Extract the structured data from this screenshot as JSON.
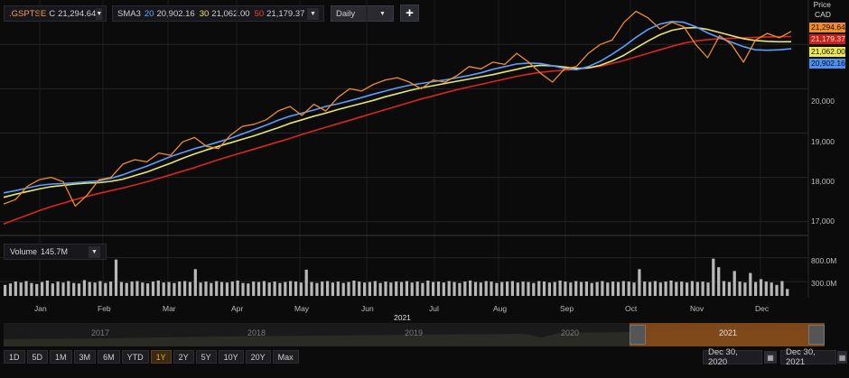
{
  "header": {
    "symbol": ".GSPTSE",
    "close_prefix": "C",
    "close_value": "21,294.64",
    "sma_label": "SMA3",
    "sma20_len": "20",
    "sma20_val": "20,902.16",
    "sma30_len": "30",
    "sma30_val": "21,062.00",
    "sma50_len": "50",
    "sma50_val": "21,179.37",
    "interval": "Daily",
    "dropdown_glyph": "▼",
    "add_glyph": "+"
  },
  "price_axis": {
    "title_line1": "Price",
    "title_line2": "CAD",
    "ticks": [
      "20,000",
      "19,000",
      "18,000",
      "17,000"
    ],
    "last_close": "21,294.64",
    "last_sma50": "21,179.37",
    "last_sma30": "21,062.00",
    "last_sma20": "20,902.16"
  },
  "volume": {
    "label": "Volume",
    "value": "145.7M",
    "ticks": [
      "800.0M",
      "300.0M"
    ]
  },
  "time_axis": {
    "months": [
      "Jan",
      "Feb",
      "Mar",
      "Apr",
      "May",
      "Jun",
      "Jul",
      "Aug",
      "Sep",
      "Oct",
      "Nov",
      "Dec"
    ],
    "year": "2021"
  },
  "navigator": {
    "years": [
      "2017",
      "2018",
      "2019",
      "2020",
      "2021"
    ]
  },
  "ranges": [
    "1D",
    "5D",
    "1M",
    "3M",
    "6M",
    "YTD",
    "1Y",
    "2Y",
    "5Y",
    "10Y",
    "20Y",
    "Max"
  ],
  "active_range": "1Y",
  "dates": {
    "start": "Dec 30, 2020",
    "end": "Dec 30, 2021"
  },
  "colors": {
    "price": "#f08c2c",
    "sma20": "#5a9cff",
    "sma30": "#e8e66e",
    "sma50": "#d8281e",
    "volume_bar": "#b8b8b8",
    "nav_selection": "#8a4d1a"
  },
  "chart_data": {
    "type": "line",
    "x_range": [
      "Dec 30, 2020",
      "Dec 30, 2021"
    ],
    "ylim": [
      16750,
      21800
    ],
    "price_series": [
      17400,
      17500,
      17800,
      17950,
      18000,
      17900,
      17350,
      17600,
      17950,
      18000,
      18300,
      18400,
      18350,
      18550,
      18500,
      18800,
      18900,
      18700,
      18650,
      18950,
      19150,
      19200,
      19300,
      19500,
      19600,
      19400,
      19650,
      19500,
      19800,
      20000,
      19950,
      20100,
      20200,
      20250,
      20150,
      20000,
      20200,
      20150,
      20300,
      20500,
      20450,
      20600,
      20550,
      20800,
      20600,
      20350,
      20150,
      20450,
      20500,
      20800,
      21000,
      21100,
      21500,
      21750,
      21600,
      21350,
      21500,
      21400,
      21000,
      20700,
      21200,
      21000,
      20600,
      21100,
      21250,
      21150,
      21294.64
    ],
    "sma20_series": [
      17650,
      17700,
      17760,
      17820,
      17850,
      17860,
      17880,
      17900,
      17920,
      17980,
      18060,
      18160,
      18250,
      18360,
      18470,
      18560,
      18650,
      18720,
      18800,
      18880,
      18980,
      19080,
      19180,
      19290,
      19380,
      19450,
      19520,
      19600,
      19660,
      19730,
      19800,
      19880,
      19950,
      20020,
      20080,
      20120,
      20160,
      20200,
      20250,
      20300,
      20360,
      20440,
      20500,
      20560,
      20580,
      20570,
      20520,
      20460,
      20430,
      20500,
      20620,
      20780,
      20960,
      21160,
      21340,
      21460,
      21520,
      21500,
      21400,
      21260,
      21150,
      21050,
      20950,
      20880,
      20870,
      20880,
      20902.16
    ],
    "sma30_series": [
      17550,
      17620,
      17680,
      17740,
      17790,
      17820,
      17850,
      17870,
      17880,
      17910,
      17960,
      18040,
      18120,
      18220,
      18320,
      18430,
      18530,
      18620,
      18700,
      18780,
      18860,
      18940,
      19030,
      19120,
      19220,
      19300,
      19380,
      19450,
      19530,
      19600,
      19670,
      19740,
      19820,
      19890,
      19960,
      20020,
      20070,
      20120,
      20170,
      20220,
      20270,
      20320,
      20380,
      20440,
      20500,
      20530,
      20520,
      20490,
      20460,
      20470,
      20530,
      20630,
      20760,
      20920,
      21080,
      21220,
      21320,
      21370,
      21380,
      21340,
      21270,
      21200,
      21130,
      21090,
      21070,
      21060,
      21062.0
    ],
    "sma50_series": [
      16950,
      17050,
      17150,
      17250,
      17340,
      17420,
      17500,
      17570,
      17640,
      17700,
      17760,
      17830,
      17900,
      17980,
      18060,
      18140,
      18220,
      18310,
      18400,
      18480,
      18560,
      18640,
      18720,
      18800,
      18880,
      18970,
      19050,
      19130,
      19210,
      19290,
      19370,
      19450,
      19530,
      19610,
      19690,
      19770,
      19840,
      19910,
      19980,
      20040,
      20100,
      20160,
      20220,
      20280,
      20330,
      20370,
      20400,
      20420,
      20440,
      20470,
      20510,
      20570,
      20640,
      20720,
      20800,
      20880,
      20960,
      21030,
      21080,
      21110,
      21130,
      21140,
      21150,
      21160,
      21170,
      21175,
      21179.37
    ],
    "volume_series_M": [
      230,
      260,
      300,
      280,
      310,
      270,
      250,
      290,
      320,
      260,
      300,
      280,
      310,
      270,
      260,
      330,
      290,
      280,
      310,
      270,
      300,
      760,
      290,
      270,
      300,
      310,
      280,
      260,
      300,
      320,
      280,
      290,
      270,
      300,
      310,
      290,
      560,
      280,
      300,
      270,
      310,
      290,
      280,
      300,
      320,
      270,
      260,
      300,
      290,
      310,
      280,
      300,
      270,
      290,
      310,
      300,
      280,
      550,
      290,
      270,
      300,
      310,
      280,
      300,
      270,
      290,
      320,
      300,
      280,
      290,
      310,
      270,
      300,
      280,
      300,
      290,
      310,
      280,
      300,
      270,
      320,
      290,
      300,
      280,
      310,
      290,
      270,
      300,
      320,
      290,
      280,
      310,
      300,
      270,
      290,
      300,
      310,
      280,
      300,
      290,
      270,
      310,
      300,
      280,
      290,
      320,
      300,
      280,
      310,
      290,
      300,
      270,
      290,
      310,
      280,
      300,
      290,
      310,
      300,
      280,
      560,
      300,
      290,
      310,
      280,
      300,
      320,
      290,
      300,
      280,
      310,
      290,
      300,
      280,
      780,
      600,
      310,
      290,
      520,
      300,
      280,
      480,
      290,
      350,
      300,
      280,
      230,
      310,
      146
    ]
  }
}
